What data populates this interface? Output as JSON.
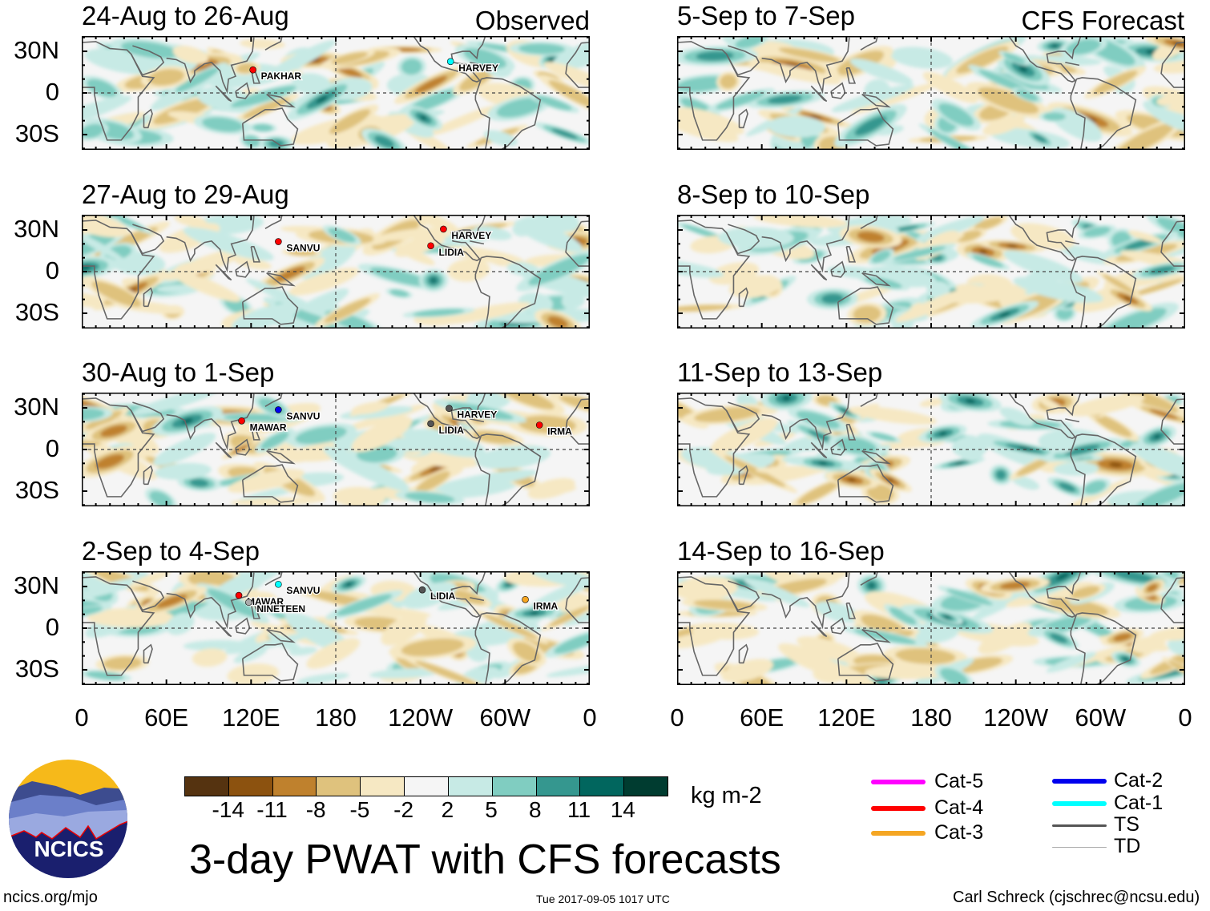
{
  "figure_title": "3-day PWAT with CFS forecasts",
  "timestamp": "Tue 2017-09-05 1017 UTC",
  "website": "ncics.org/mjo",
  "author": "Carl Schreck (cjschrec@ncsu.edu)",
  "logo_text": "NCICS",
  "column_labels": {
    "observed": "Observed",
    "forecast": "CFS Forecast"
  },
  "y_axis_labels": [
    "30N",
    "0",
    "30S"
  ],
  "x_axis_labels": [
    "0",
    "60E",
    "120E",
    "180",
    "120W",
    "60W",
    "0"
  ],
  "chart_data": {
    "type": "heatmap",
    "variable": "3-day precipitable water anomaly",
    "units": "kg m-2",
    "lon_range": [
      0,
      360
    ],
    "lat_range": [
      -40,
      40
    ],
    "panels": [
      {
        "title": "24-Aug to 26-Aug",
        "kind": "observed",
        "storms": [
          {
            "name": "PAKHAR",
            "lon": 127,
            "lat": 12,
            "category": "Cat-4"
          },
          {
            "name": "HARVEY",
            "lon": 267,
            "lat": 18,
            "category": "Cat-1"
          }
        ]
      },
      {
        "title": "27-Aug to 29-Aug",
        "kind": "observed",
        "storms": [
          {
            "name": "SANVU",
            "lon": 145,
            "lat": 17,
            "category": "Cat-4"
          },
          {
            "name": "HARVEY",
            "lon": 262,
            "lat": 26,
            "category": "Cat-4"
          },
          {
            "name": "LIDIA",
            "lon": 253,
            "lat": 14,
            "category": "Cat-4"
          }
        ]
      },
      {
        "title": "30-Aug to 1-Sep",
        "kind": "observed",
        "storms": [
          {
            "name": "SANVU",
            "lon": 145,
            "lat": 24,
            "category": "Cat-2"
          },
          {
            "name": "MAWAR",
            "lon": 119,
            "lat": 16,
            "category": "Cat-4"
          },
          {
            "name": "HARVEY",
            "lon": 266,
            "lat": 25,
            "category": "TS"
          },
          {
            "name": "LIDIA",
            "lon": 253,
            "lat": 14,
            "category": "TS"
          },
          {
            "name": "IRMA",
            "lon": 330,
            "lat": 13,
            "category": "Cat-4"
          }
        ]
      },
      {
        "title": "2-Sep to 4-Sep",
        "kind": "observed",
        "storms": [
          {
            "name": "SANVU",
            "lon": 145,
            "lat": 27,
            "category": "Cat-1"
          },
          {
            "name": "MAWAR",
            "lon": 117,
            "lat": 19,
            "category": "Cat-4"
          },
          {
            "name": "NINETEEN",
            "lon": 124,
            "lat": 14,
            "category": "TD"
          },
          {
            "name": "LIDIA",
            "lon": 247,
            "lat": 23,
            "category": "TS"
          },
          {
            "name": "IRMA",
            "lon": 320,
            "lat": 16,
            "category": "Cat-3"
          }
        ]
      },
      {
        "title": "5-Sep to 7-Sep",
        "kind": "forecast",
        "storms": []
      },
      {
        "title": "8-Sep to 10-Sep",
        "kind": "forecast",
        "storms": []
      },
      {
        "title": "11-Sep to 13-Sep",
        "kind": "forecast",
        "storms": []
      },
      {
        "title": "14-Sep to 16-Sep",
        "kind": "forecast",
        "storms": []
      }
    ],
    "colorbar": {
      "levels": [
        "-14",
        "-11",
        "-8",
        "-5",
        "-2",
        "2",
        "5",
        "8",
        "11",
        "14"
      ],
      "colors": [
        "#553310",
        "#8c520f",
        "#bf812d",
        "#dfc27d",
        "#f6e8c3",
        "#f5f5f5",
        "#c7eae5",
        "#80cdc1",
        "#35978f",
        "#01665e",
        "#003c30"
      ],
      "units": "kg m-2"
    },
    "track_legend": [
      {
        "label": "Cat-5",
        "color": "#ff00ff"
      },
      {
        "label": "Cat-4",
        "color": "#ff0000"
      },
      {
        "label": "Cat-3",
        "color": "#f5a623"
      },
      {
        "label": "Cat-2",
        "color": "#0000ee"
      },
      {
        "label": "Cat-1",
        "color": "#00ffff"
      },
      {
        "label": "TS",
        "color": "#555555"
      },
      {
        "label": "TD",
        "color": "#aaaaaa"
      }
    ]
  }
}
